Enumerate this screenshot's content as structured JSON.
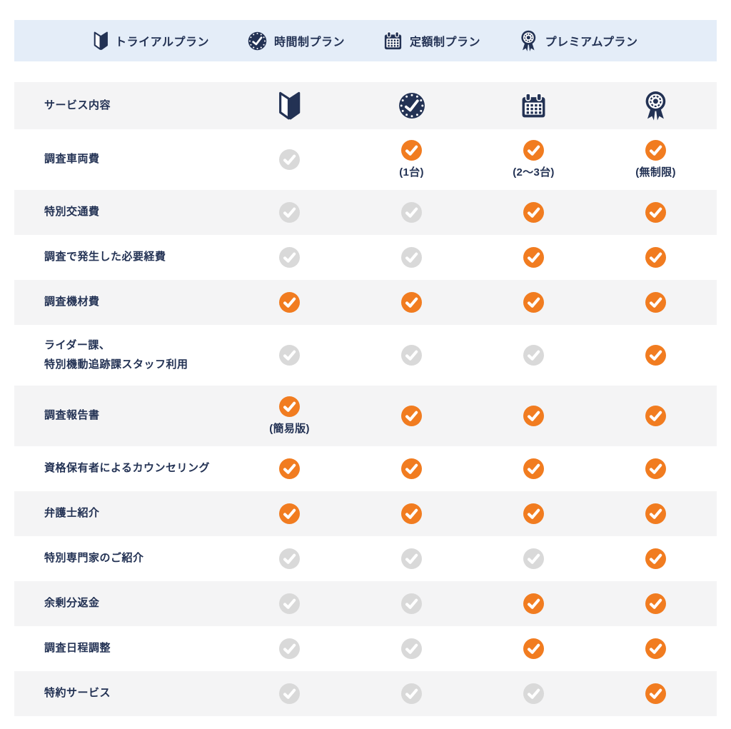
{
  "colors": {
    "navy": "#233254",
    "orange": "#f17c20",
    "gray_check": "#d9d9d9",
    "header_bg": "#e4edf8",
    "row_alt_bg": "#f4f4f5"
  },
  "plan_header": {
    "items": [
      {
        "label": "トライアルプラン",
        "icon": "beginner-mark-icon"
      },
      {
        "label": "時間制プラン",
        "icon": "clock-icon"
      },
      {
        "label": "定額制プラン",
        "icon": "calendar-icon"
      },
      {
        "label": "プレミアムプラン",
        "icon": "medal-icon"
      }
    ]
  },
  "table": {
    "service_column_header": "サービス内容",
    "column_icons": [
      "beginner-mark-icon",
      "clock-icon",
      "calendar-icon",
      "medal-icon"
    ],
    "rows": [
      {
        "label": "調査車両費",
        "cells": [
          {
            "state": "inactive"
          },
          {
            "state": "active",
            "note": "(1台)"
          },
          {
            "state": "active",
            "note": "(2〜3台)"
          },
          {
            "state": "active",
            "note": "(無制限)"
          }
        ]
      },
      {
        "label": "特別交通費",
        "cells": [
          {
            "state": "inactive"
          },
          {
            "state": "inactive"
          },
          {
            "state": "active"
          },
          {
            "state": "active"
          }
        ]
      },
      {
        "label": "調査で発生した必要経費",
        "cells": [
          {
            "state": "inactive"
          },
          {
            "state": "inactive"
          },
          {
            "state": "active"
          },
          {
            "state": "active"
          }
        ]
      },
      {
        "label": "調査機材費",
        "cells": [
          {
            "state": "active"
          },
          {
            "state": "active"
          },
          {
            "state": "active"
          },
          {
            "state": "active"
          }
        ]
      },
      {
        "label": "ライダー課、\n特別機動追跡課スタッフ利用",
        "cells": [
          {
            "state": "inactive"
          },
          {
            "state": "inactive"
          },
          {
            "state": "inactive"
          },
          {
            "state": "active"
          }
        ]
      },
      {
        "label": "調査報告書",
        "cells": [
          {
            "state": "active",
            "note": "(簡易版)"
          },
          {
            "state": "active"
          },
          {
            "state": "active"
          },
          {
            "state": "active"
          }
        ]
      },
      {
        "label": "資格保有者によるカウンセリング",
        "cells": [
          {
            "state": "active"
          },
          {
            "state": "active"
          },
          {
            "state": "active"
          },
          {
            "state": "active"
          }
        ]
      },
      {
        "label": "弁護士紹介",
        "cells": [
          {
            "state": "active"
          },
          {
            "state": "active"
          },
          {
            "state": "active"
          },
          {
            "state": "active"
          }
        ]
      },
      {
        "label": "特別専門家のご紹介",
        "cells": [
          {
            "state": "inactive"
          },
          {
            "state": "inactive"
          },
          {
            "state": "inactive"
          },
          {
            "state": "active"
          }
        ]
      },
      {
        "label": "余剰分返金",
        "cells": [
          {
            "state": "inactive"
          },
          {
            "state": "inactive"
          },
          {
            "state": "active"
          },
          {
            "state": "active"
          }
        ]
      },
      {
        "label": "調査日程調整",
        "cells": [
          {
            "state": "inactive"
          },
          {
            "state": "inactive"
          },
          {
            "state": "active"
          },
          {
            "state": "active"
          }
        ]
      },
      {
        "label": "特約サービス",
        "cells": [
          {
            "state": "inactive"
          },
          {
            "state": "inactive"
          },
          {
            "state": "inactive"
          },
          {
            "state": "active"
          }
        ]
      }
    ]
  }
}
